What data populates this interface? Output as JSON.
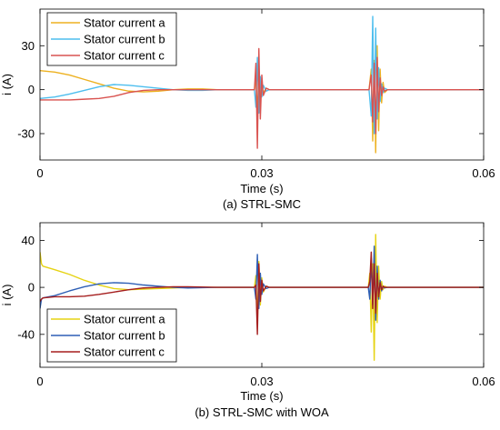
{
  "chart_data": [
    {
      "type": "line",
      "caption": "(a) STRL-SMC",
      "xlabel": "Time (s)",
      "ylabel": "i (A)",
      "xlim": [
        0,
        0.06
      ],
      "ylim": [
        -48,
        55
      ],
      "xticks": [
        0,
        0.03,
        0.06
      ],
      "xtick_labels": [
        "0",
        "0.03",
        "0.06"
      ],
      "yticks": [
        -30,
        0,
        30
      ],
      "ytick_labels": [
        "-30",
        "0",
        "30"
      ],
      "legend_position": "top-left",
      "grid": false,
      "series": [
        {
          "name": "Stator current a",
          "color": "#EDB120",
          "x": [
            0,
            0.002,
            0.004,
            0.006,
            0.008,
            0.01,
            0.012,
            0.014,
            0.016,
            0.018,
            0.02,
            0.022,
            0.024,
            0.026,
            0.028,
            0.029,
            0.0292,
            0.0294,
            0.0296,
            0.0298,
            0.03,
            0.0302,
            0.0306,
            0.031,
            0.034,
            0.038,
            0.042,
            0.0445,
            0.0448,
            0.045,
            0.0452,
            0.0454,
            0.0456,
            0.0458,
            0.046,
            0.0462,
            0.0464,
            0.0466,
            0.047,
            0.05,
            0.055,
            0.06
          ],
          "y": [
            13,
            12,
            10,
            7,
            4,
            1,
            -1,
            -1.5,
            -1,
            0,
            0.5,
            0.5,
            0,
            0,
            0,
            0,
            8,
            -14,
            6,
            -5,
            3,
            -2,
            1,
            0,
            0,
            0,
            0,
            0,
            14,
            -35,
            20,
            -43,
            30,
            -28,
            14,
            -9,
            5,
            -2,
            0,
            0,
            0,
            0
          ]
        },
        {
          "name": "Stator current b",
          "color": "#4DBEEE",
          "x": [
            0,
            0.002,
            0.004,
            0.006,
            0.008,
            0.01,
            0.012,
            0.014,
            0.016,
            0.018,
            0.02,
            0.022,
            0.024,
            0.026,
            0.028,
            0.029,
            0.0292,
            0.0294,
            0.0296,
            0.0298,
            0.03,
            0.0302,
            0.0306,
            0.031,
            0.034,
            0.038,
            0.042,
            0.0445,
            0.0448,
            0.045,
            0.0452,
            0.0454,
            0.0456,
            0.0458,
            0.046,
            0.0462,
            0.0464,
            0.0466,
            0.047,
            0.05,
            0.055,
            0.06
          ],
          "y": [
            -6,
            -5,
            -3,
            -0.5,
            2,
            3.5,
            3,
            2,
            1,
            0,
            -0.5,
            -0.5,
            0,
            0,
            0,
            0,
            -12,
            22,
            -16,
            9,
            -5,
            3,
            -1,
            0,
            0,
            0,
            0,
            0,
            -18,
            50,
            -30,
            42,
            -20,
            15,
            -8,
            4,
            -2,
            1,
            0,
            0,
            0,
            0
          ]
        },
        {
          "name": "Stator current c",
          "color": "#D95350",
          "x": [
            0,
            0.002,
            0.004,
            0.006,
            0.008,
            0.01,
            0.012,
            0.014,
            0.016,
            0.018,
            0.02,
            0.022,
            0.024,
            0.026,
            0.028,
            0.029,
            0.0292,
            0.0294,
            0.0296,
            0.0298,
            0.03,
            0.0302,
            0.0306,
            0.031,
            0.034,
            0.038,
            0.042,
            0.0445,
            0.0448,
            0.045,
            0.0452,
            0.0454,
            0.0456,
            0.0458,
            0.046,
            0.0462,
            0.0464,
            0.0466,
            0.047,
            0.05,
            0.055,
            0.06
          ],
          "y": [
            -7,
            -7,
            -7,
            -6.5,
            -6,
            -4.5,
            -2,
            -0.5,
            0,
            0,
            0,
            0,
            0,
            0,
            0,
            0,
            18,
            -40,
            28,
            -20,
            10,
            -4,
            1,
            0,
            0,
            0,
            0,
            0,
            10,
            -22,
            18,
            -30,
            22,
            -15,
            8,
            -4,
            2,
            -1,
            0,
            0,
            0,
            0
          ]
        }
      ]
    },
    {
      "type": "line",
      "caption": "(b) STRL-SMC with WOA",
      "xlabel": "Time (s)",
      "ylabel": "i (A)",
      "xlim": [
        0,
        0.06
      ],
      "ylim": [
        -68,
        55
      ],
      "xticks": [
        0,
        0.03,
        0.06
      ],
      "xtick_labels": [
        "0",
        "0.03",
        "0.06"
      ],
      "yticks": [
        -40,
        0,
        40
      ],
      "ytick_labels": [
        "-40",
        "0",
        "40"
      ],
      "legend_position": "bottom-left",
      "grid": false,
      "series": [
        {
          "name": "Stator current a",
          "color": "#E6D313",
          "x": [
            0,
            0.0002,
            0.0004,
            0.002,
            0.004,
            0.006,
            0.008,
            0.01,
            0.012,
            0.014,
            0.016,
            0.018,
            0.02,
            0.024,
            0.028,
            0.029,
            0.0292,
            0.0294,
            0.0296,
            0.0298,
            0.03,
            0.0302,
            0.0306,
            0.031,
            0.036,
            0.042,
            0.0444,
            0.0446,
            0.0448,
            0.045,
            0.0452,
            0.0454,
            0.0456,
            0.0458,
            0.046,
            0.0462,
            0.0464,
            0.0466,
            0.047,
            0.052,
            0.06
          ],
          "y": [
            30,
            20,
            18,
            15,
            11,
            6,
            2,
            -1,
            -2,
            -1.5,
            -1,
            -0.5,
            0,
            0,
            0,
            0,
            10,
            -32,
            22,
            -15,
            8,
            -4,
            1,
            0,
            0,
            0,
            0,
            12,
            -38,
            20,
            -62,
            45,
            -30,
            18,
            -10,
            5,
            -2,
            1,
            0,
            0,
            0
          ]
        },
        {
          "name": "Stator current b",
          "color": "#2E5FB5",
          "x": [
            0,
            0.0002,
            0.0004,
            0.002,
            0.004,
            0.006,
            0.008,
            0.01,
            0.012,
            0.014,
            0.016,
            0.018,
            0.02,
            0.024,
            0.028,
            0.029,
            0.0292,
            0.0294,
            0.0296,
            0.0298,
            0.03,
            0.0302,
            0.0306,
            0.031,
            0.036,
            0.042,
            0.0444,
            0.0446,
            0.0448,
            0.045,
            0.0452,
            0.0454,
            0.0456,
            0.0458,
            0.046,
            0.0462,
            0.0464,
            0.0466,
            0.047,
            0.052,
            0.06
          ],
          "y": [
            -18,
            -10,
            -9,
            -7,
            -3,
            0.5,
            3,
            4,
            3.5,
            2,
            1,
            0,
            -0.5,
            0,
            0,
            0,
            -10,
            28,
            -18,
            12,
            -6,
            3,
            -1,
            0,
            0,
            0,
            0,
            -10,
            25,
            -15,
            35,
            -28,
            18,
            -10,
            6,
            -3,
            1,
            -0.5,
            0,
            0,
            0
          ]
        },
        {
          "name": "Stator current c",
          "color": "#A51E1E",
          "x": [
            0,
            0.0002,
            0.0004,
            0.002,
            0.004,
            0.006,
            0.008,
            0.01,
            0.012,
            0.014,
            0.016,
            0.018,
            0.02,
            0.024,
            0.028,
            0.029,
            0.0292,
            0.0294,
            0.0296,
            0.0298,
            0.03,
            0.0302,
            0.0306,
            0.031,
            0.036,
            0.042,
            0.0444,
            0.0446,
            0.0448,
            0.045,
            0.0452,
            0.0454,
            0.0456,
            0.0458,
            0.046,
            0.0462,
            0.0464,
            0.0466,
            0.047,
            0.052,
            0.06
          ],
          "y": [
            -12,
            -10,
            -9,
            -8,
            -8,
            -7.5,
            -6,
            -4,
            -2,
            -0.5,
            0,
            0.5,
            0.5,
            0,
            0,
            0,
            2,
            -40,
            20,
            -12,
            6,
            -3,
            1,
            0,
            0,
            0,
            0,
            5,
            30,
            -18,
            20,
            -22,
            12,
            -8,
            4,
            -2,
            1,
            0,
            0,
            0,
            0
          ]
        }
      ]
    }
  ]
}
